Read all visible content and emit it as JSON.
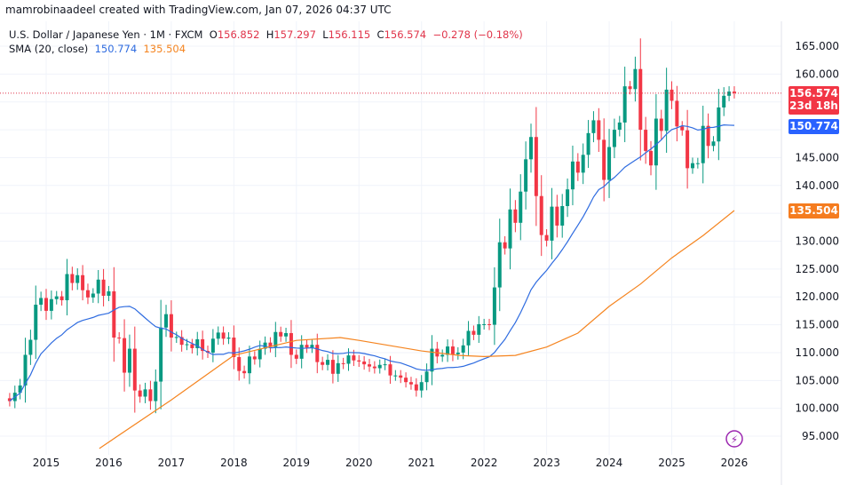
{
  "credit": "mamrobinaadeel created with TradingView.com, Jan 07, 2026 04:37 UTC",
  "legend": {
    "symbol": "U.S. Dollar / Japanese Yen · 1M · FXCM",
    "o_label": "O",
    "o": "156.852",
    "h_label": "H",
    "h": "157.297",
    "l_label": "L",
    "l": "156.115",
    "c_label": "C",
    "c": "156.574",
    "change": "−0.278 (−0.18%)",
    "sma_label": "SMA (20, close)",
    "sma_fast": "150.774",
    "sma_slow": "135.504"
  },
  "tags": {
    "price": "156.574",
    "countdown": "23d 18h",
    "sma_fast": "150.774",
    "sma_slow": "135.504"
  },
  "colors": {
    "up": "#089981",
    "down": "#f23645",
    "sma_fast": "#2f6ce0",
    "sma_slow": "#f5841f",
    "price_line": "#e0344a"
  },
  "chart_data": {
    "type": "candlestick",
    "start": "2014-06",
    "interval": "1M",
    "closes": [
      101.3,
      102.8,
      104.1,
      109.6,
      112.3,
      118.6,
      119.8,
      117.5,
      119.6,
      120.1,
      119.4,
      124.1,
      122.5,
      123.9,
      121.2,
      119.9,
      120.6,
      123.1,
      120.2,
      121.0,
      112.7,
      112.6,
      106.4,
      110.7,
      103.2,
      102.1,
      103.4,
      101.3,
      104.8,
      114.5,
      116.9,
      112.7,
      112.8,
      111.4,
      111.5,
      110.8,
      112.4,
      110.3,
      110.0,
      112.5,
      113.6,
      112.5,
      112.7,
      109.2,
      106.7,
      106.3,
      109.3,
      108.8,
      110.7,
      111.8,
      111.0,
      113.7,
      112.9,
      113.5,
      109.6,
      108.9,
      111.4,
      110.9,
      111.4,
      108.3,
      107.8,
      108.7,
      106.2,
      108.1,
      108.0,
      109.5,
      108.6,
      108.4,
      107.9,
      107.5,
      107.2,
      107.8,
      107.9,
      105.9,
      105.9,
      105.5,
      104.7,
      104.3,
      103.2,
      104.7,
      106.6,
      110.7,
      109.3,
      109.6,
      111.1,
      109.7,
      110.0,
      111.3,
      113.9,
      113.2,
      115.1,
      115.1,
      115.0,
      121.7,
      129.8,
      128.7,
      135.7,
      133.3,
      138.9,
      144.7,
      148.7,
      138.1,
      131.1,
      130.1,
      136.2,
      132.8,
      136.3,
      139.3,
      144.3,
      142.3,
      145.5,
      149.4,
      151.7,
      148.2,
      141.0,
      146.9,
      150.0,
      151.3,
      157.8,
      157.3,
      160.9,
      150.0,
      146.2,
      143.6,
      152.0,
      149.8,
      157.2,
      155.2,
      150.6,
      149.9,
      143.1,
      144.0,
      144.0,
      150.7,
      147.1,
      147.9,
      154.0,
      156.1,
      156.852,
      156.574
    ],
    "first_open": 101.8,
    "sma_fast_period": 20,
    "sma_slow_points": [
      [
        2015.85,
        92.8
      ],
      [
        2017,
        101.5
      ],
      [
        2018,
        109.5
      ],
      [
        2019,
        112.2
      ],
      [
        2019.7,
        112.7
      ],
      [
        2020,
        112.2
      ],
      [
        2021,
        110.3
      ],
      [
        2021.6,
        109.5
      ],
      [
        2022,
        109.3
      ],
      [
        2022.5,
        109.5
      ],
      [
        2023,
        111
      ],
      [
        2023.5,
        113.5
      ],
      [
        2024,
        118.3
      ],
      [
        2024.5,
        122.3
      ],
      [
        2025,
        127
      ],
      [
        2025.5,
        131
      ],
      [
        2026,
        135.5
      ]
    ],
    "y_ticks": [
      "95.000",
      "100.000",
      "105.000",
      "110.000",
      "115.000",
      "120.000",
      "125.000",
      "130.000",
      "135.000",
      "140.000",
      "145.000",
      "150.000",
      "155.000",
      "160.000",
      "165.000"
    ],
    "x_ticks": [
      "2015",
      "2016",
      "2017",
      "2018",
      "2019",
      "2020",
      "2021",
      "2022",
      "2023",
      "2024",
      "2025",
      "2026"
    ],
    "last_price": 156.574
  }
}
